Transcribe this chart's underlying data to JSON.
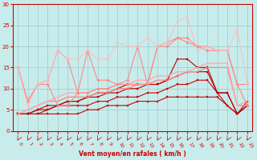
{
  "xlabel": "Vent moyen/en rafales ( km/h )",
  "xlim": [
    -0.5,
    23.5
  ],
  "ylim": [
    0,
    30
  ],
  "yticks": [
    0,
    5,
    10,
    15,
    20,
    25,
    30
  ],
  "xticks": [
    0,
    1,
    2,
    3,
    4,
    5,
    6,
    7,
    8,
    9,
    10,
    11,
    12,
    13,
    14,
    15,
    16,
    17,
    18,
    19,
    20,
    21,
    22,
    23
  ],
  "bg_color": "#c8ecec",
  "grid_color": "#a0d0d0",
  "lines": [
    {
      "x": [
        0,
        1,
        2,
        3,
        4,
        5,
        6,
        7,
        8,
        9,
        10,
        11,
        12,
        13,
        14,
        15,
        16,
        17,
        18,
        19,
        20,
        21,
        22,
        23
      ],
      "y": [
        4,
        4,
        4,
        4,
        4,
        4,
        4,
        5,
        5,
        6,
        6,
        6,
        7,
        7,
        7,
        8,
        8,
        8,
        8,
        8,
        8,
        6,
        4,
        6
      ],
      "color": "#cc0000",
      "lw": 0.8,
      "marker": "s",
      "ms": 1.5
    },
    {
      "x": [
        0,
        1,
        2,
        3,
        4,
        5,
        6,
        7,
        8,
        9,
        10,
        11,
        12,
        13,
        14,
        15,
        16,
        17,
        18,
        19,
        20,
        21,
        22,
        23
      ],
      "y": [
        4,
        4,
        4,
        5,
        6,
        6,
        6,
        6,
        7,
        7,
        8,
        8,
        8,
        9,
        9,
        10,
        11,
        11,
        12,
        12,
        9,
        6,
        4,
        6
      ],
      "color": "#cc0000",
      "lw": 0.8,
      "marker": "s",
      "ms": 1.5
    },
    {
      "x": [
        0,
        1,
        2,
        3,
        4,
        5,
        6,
        7,
        8,
        9,
        10,
        11,
        12,
        13,
        14,
        15,
        16,
        17,
        18,
        19,
        20,
        21,
        22,
        23
      ],
      "y": [
        4,
        4,
        5,
        5,
        6,
        7,
        7,
        8,
        8,
        9,
        9,
        10,
        10,
        11,
        11,
        12,
        13,
        14,
        14,
        14,
        9,
        9,
        4,
        6
      ],
      "color": "#bb0000",
      "lw": 0.8,
      "marker": "s",
      "ms": 1.5
    },
    {
      "x": [
        0,
        1,
        2,
        3,
        4,
        5,
        6,
        7,
        8,
        9,
        10,
        11,
        12,
        13,
        14,
        15,
        16,
        17,
        18,
        19,
        20,
        21,
        22,
        23
      ],
      "y": [
        4,
        4,
        5,
        6,
        6,
        7,
        7,
        8,
        9,
        9,
        10,
        11,
        11,
        11,
        11,
        12,
        17,
        17,
        15,
        15,
        9,
        9,
        4,
        7
      ],
      "color": "#bb0000",
      "lw": 0.8,
      "marker": "s",
      "ms": 1.5
    },
    {
      "x": [
        0,
        1,
        2,
        3,
        4,
        5,
        6,
        7,
        8,
        9,
        10,
        11,
        12,
        13,
        14,
        15,
        16,
        17,
        18,
        19,
        20,
        21,
        22,
        23
      ],
      "y": [
        4,
        5,
        6,
        7,
        7,
        8,
        8,
        8,
        9,
        9,
        10,
        10,
        11,
        11,
        12,
        12,
        13,
        14,
        14,
        15,
        15,
        15,
        6,
        6
      ],
      "color": "#ff8888",
      "lw": 1.0,
      "marker": "None",
      "ms": 0
    },
    {
      "x": [
        0,
        1,
        2,
        3,
        4,
        5,
        6,
        7,
        8,
        9,
        10,
        11,
        12,
        13,
        14,
        15,
        16,
        17,
        18,
        19,
        20,
        21,
        22,
        23
      ],
      "y": [
        4,
        5,
        6,
        7,
        8,
        9,
        9,
        9,
        10,
        10,
        11,
        11,
        12,
        12,
        13,
        13,
        14,
        14,
        15,
        16,
        16,
        16,
        6,
        7
      ],
      "color": "#ffaaaa",
      "lw": 1.0,
      "marker": "None",
      "ms": 0
    },
    {
      "x": [
        0,
        1,
        2,
        3,
        4,
        5,
        6,
        7,
        8,
        9,
        10,
        11,
        12,
        13,
        14,
        15,
        16,
        17,
        18,
        19,
        20,
        21,
        22,
        23
      ],
      "y": [
        15,
        7,
        11,
        11,
        6,
        6,
        9,
        9,
        10,
        10,
        11,
        11,
        11,
        11,
        20,
        20,
        22,
        21,
        20,
        19,
        19,
        19,
        11,
        6
      ],
      "color": "#ff8888",
      "lw": 0.8,
      "marker": "D",
      "ms": 1.8
    },
    {
      "x": [
        0,
        1,
        2,
        3,
        4,
        5,
        6,
        7,
        8,
        9,
        10,
        11,
        12,
        13,
        14,
        15,
        16,
        17,
        18,
        19,
        20,
        21,
        22,
        23
      ],
      "y": [
        15,
        7,
        11,
        12,
        19,
        17,
        9,
        19,
        12,
        12,
        11,
        12,
        20,
        11,
        20,
        21,
        22,
        22,
        20,
        20,
        19,
        19,
        11,
        11
      ],
      "color": "#ff8888",
      "lw": 0.8,
      "marker": "D",
      "ms": 1.8
    },
    {
      "x": [
        0,
        1,
        2,
        3,
        4,
        5,
        6,
        7,
        8,
        9,
        10,
        11,
        12,
        13,
        14,
        15,
        16,
        17,
        18,
        19,
        20,
        21,
        22,
        23
      ],
      "y": [
        15,
        6,
        11,
        12,
        19,
        17,
        17,
        19,
        17,
        17,
        21,
        20,
        20,
        22,
        20,
        21,
        26,
        27,
        19,
        20,
        19,
        19,
        24,
        11
      ],
      "color": "#ffbbbb",
      "lw": 0.7,
      "marker": "D",
      "ms": 1.5
    }
  ]
}
